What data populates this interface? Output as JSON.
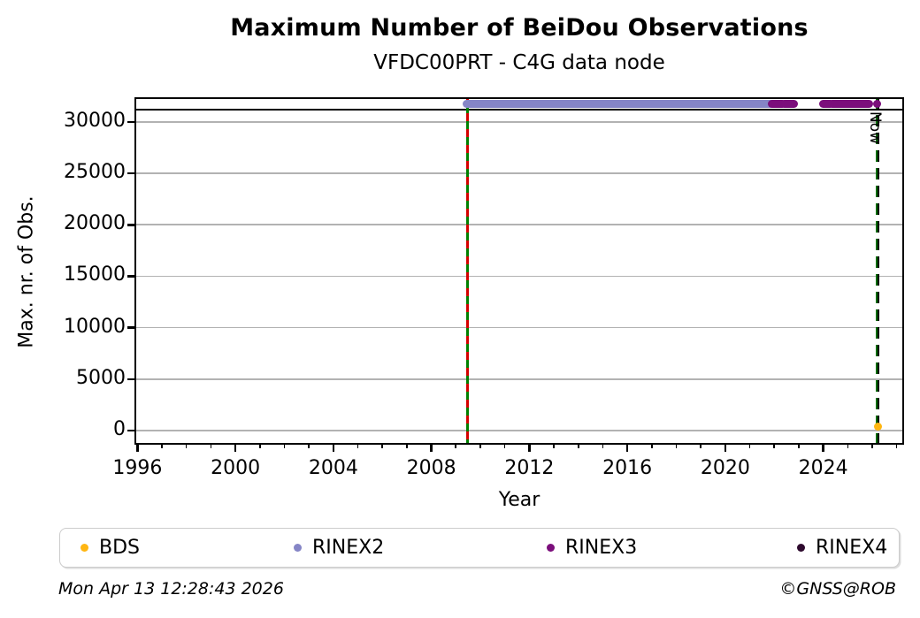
{
  "chart_data": {
    "type": "scatter",
    "title": "Maximum Number of BeiDou Observations",
    "subtitle": "VFDC00PRT - C4G data node",
    "xlabel": "Year",
    "ylabel": "Max. nr. of Obs.",
    "xlim": [
      1995.88,
      2027.3
    ],
    "ylim": [
      -1375,
      32400
    ],
    "xticks": [
      1996,
      2000,
      2004,
      2008,
      2012,
      2016,
      2020,
      2024
    ],
    "x_minor_tick_step": 1,
    "yticks": [
      0,
      5000,
      10000,
      15000,
      20000,
      25000,
      30000
    ],
    "grid": "horizontal-only",
    "grid_color": "#b2b2b2",
    "hline": {
      "value": 31200,
      "color": "#000000"
    },
    "series": [
      {
        "name": "BDS",
        "color": "#FFB612",
        "marker": "dot",
        "points": [
          [
            2026.22,
            400
          ]
        ],
        "segments": []
      },
      {
        "name": "RINEX2",
        "color": "#8585C6",
        "marker": "dot",
        "value": 31750,
        "segments": [
          [
            2009.45,
            2021.87
          ]
        ],
        "points": []
      },
      {
        "name": "RINEX3",
        "color": "#7B0E7B",
        "marker": "dot",
        "value": 31750,
        "segments": [
          [
            2021.9,
            2022.33
          ],
          [
            2022.4,
            2022.8
          ],
          [
            2023.98,
            2024.3
          ],
          [
            2024.36,
            2025.88
          ]
        ],
        "points": [
          [
            2026.2,
            31750
          ]
        ]
      },
      {
        "name": "RINEX4",
        "color": "#2E0A2E",
        "marker": "dot",
        "value": 31750,
        "segments": [],
        "points": []
      }
    ],
    "event_lines": [
      {
        "x": 2009.47,
        "kind": "equipment-change",
        "dash_colors": [
          "#d40000",
          "#008000"
        ]
      },
      {
        "x": 2026.22,
        "kind": "now",
        "dash_colors": [
          "#006d00",
          "#000000"
        ],
        "label": "Now"
      }
    ],
    "legend_position": "bottom"
  },
  "legend": {
    "items": [
      {
        "label": "BDS",
        "color": "#FFB612"
      },
      {
        "label": "RINEX2",
        "color": "#8585C6"
      },
      {
        "label": "RINEX3",
        "color": "#7B0E7B"
      },
      {
        "label": "RINEX4",
        "color": "#2E0A2E"
      }
    ]
  },
  "footer": {
    "timestamp": "Mon Apr 13 12:28:43 2026",
    "copyright": "©GNSS@ROB"
  }
}
